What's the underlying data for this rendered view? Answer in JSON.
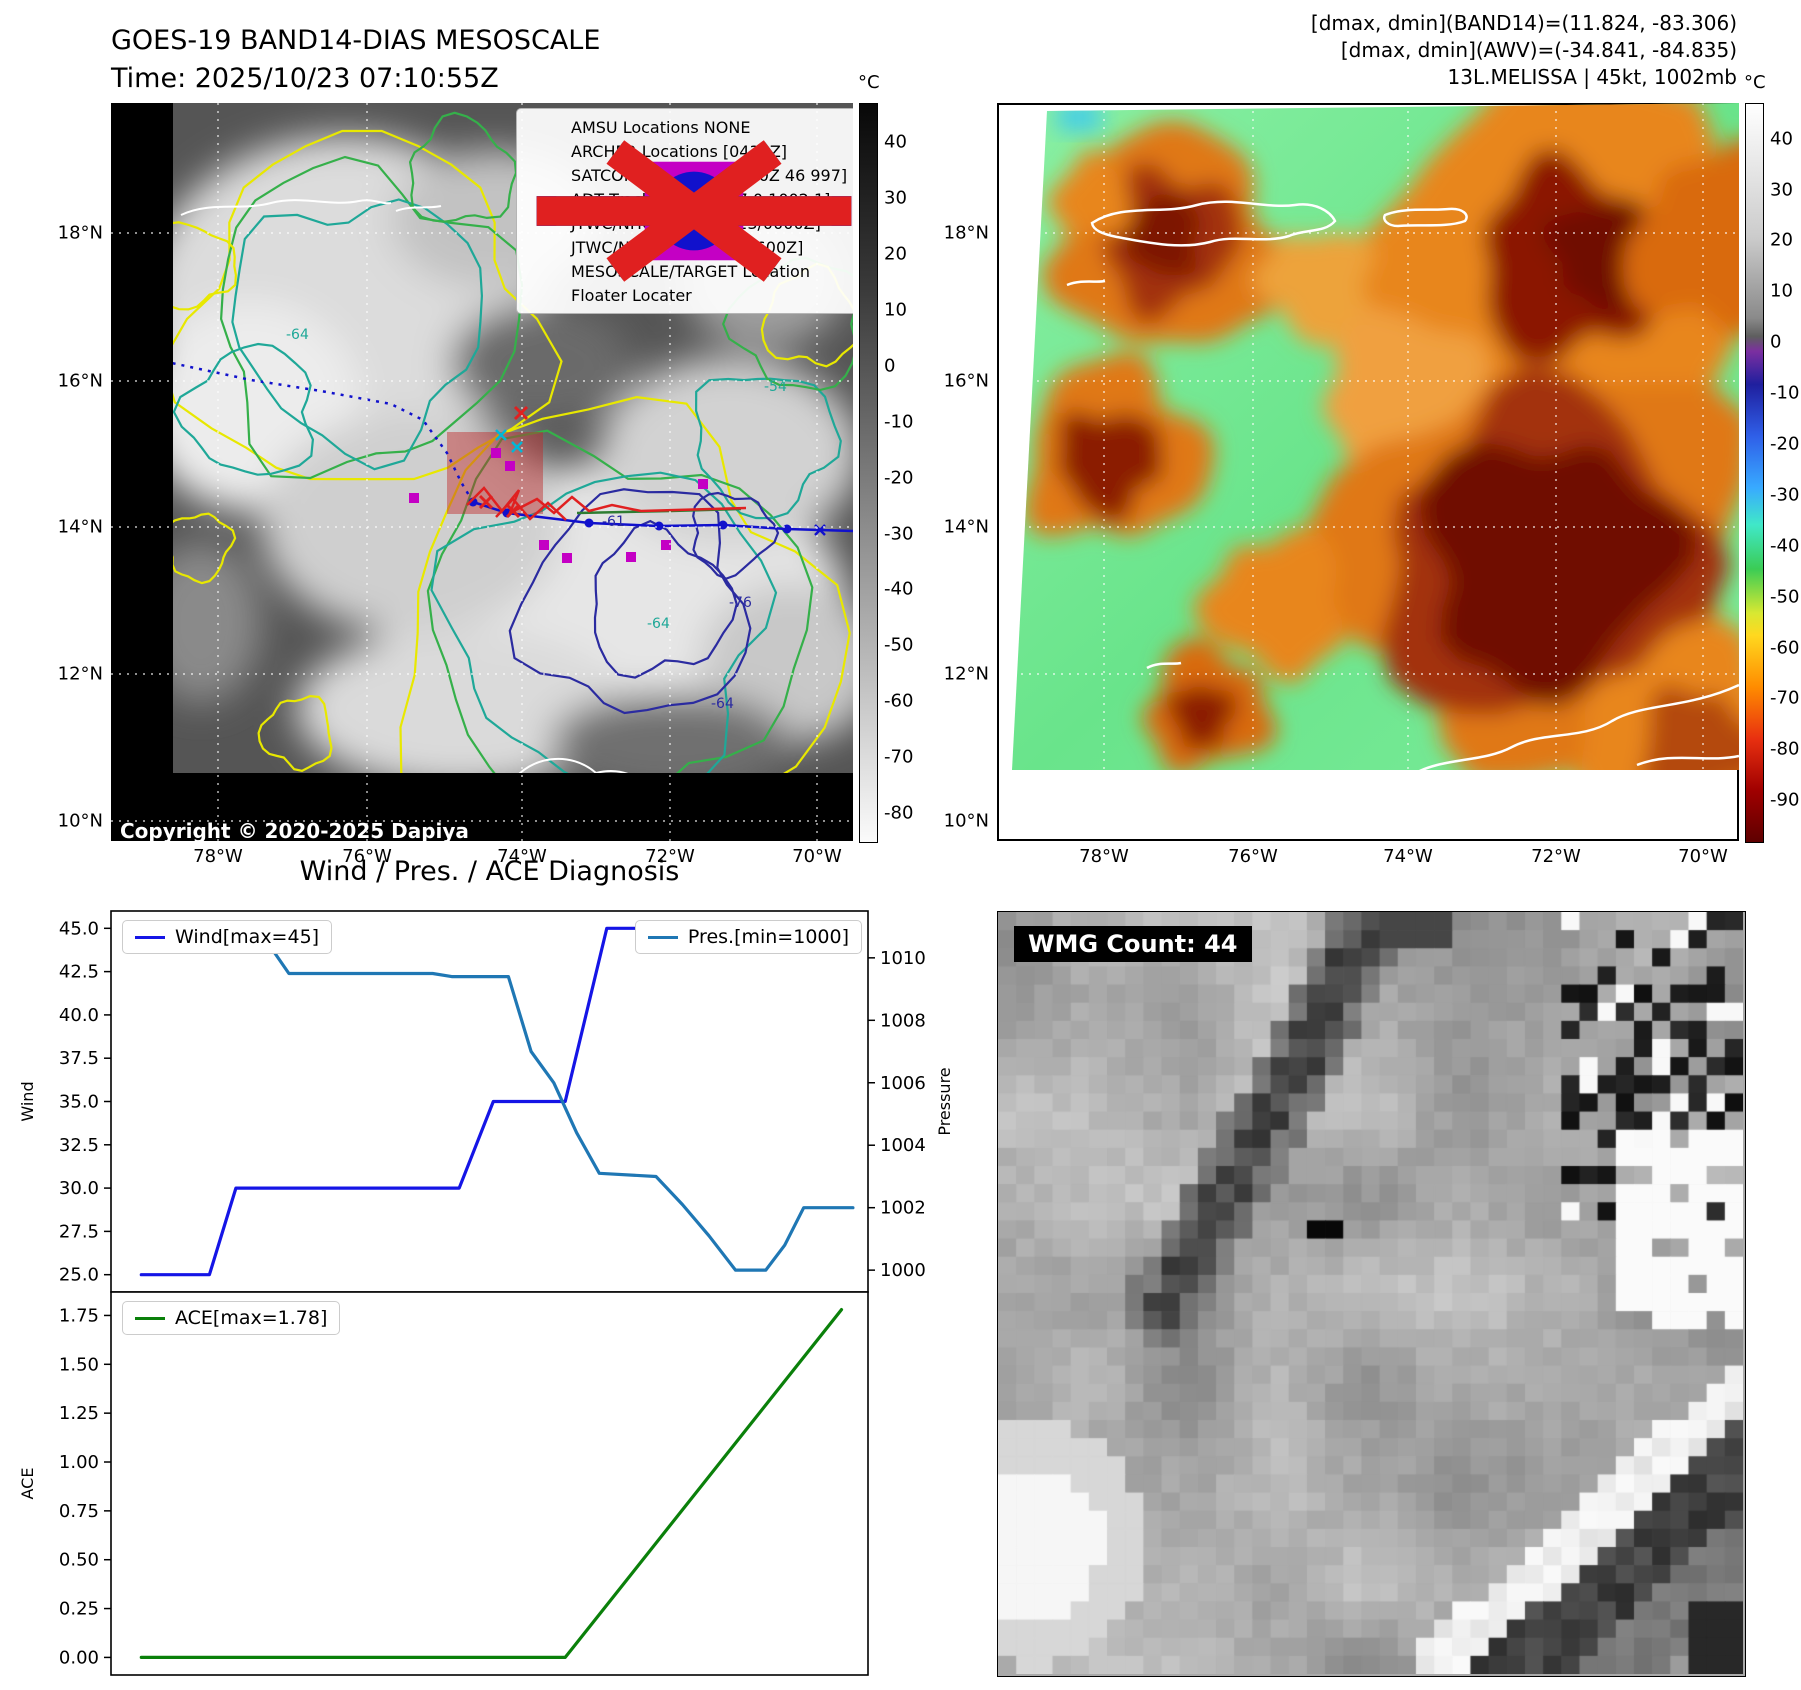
{
  "band14_panel": {
    "title": "GOES-19 BAND14-DIAS MESOSCALE",
    "time_line": "Time: 2025/10/23 07:10:55Z",
    "copyright": "Copyright © 2020-2025 Dapiya",
    "colorbar_unit": "°C",
    "colorbar_ticks": [
      40,
      30,
      20,
      10,
      0,
      -10,
      -20,
      -30,
      -40,
      -50,
      -60,
      -70,
      -80
    ],
    "colorbar_range": {
      "max": 47,
      "min": -85
    },
    "lat_ticks": [
      "18°N",
      "16°N",
      "14°N",
      "12°N",
      "10°N"
    ],
    "lon_ticks": [
      "78°W",
      "76°W",
      "74°W",
      "72°W",
      "70°W"
    ],
    "contour_labels": [
      "-64",
      "-54",
      "-61",
      "-76",
      "-64",
      "-64"
    ],
    "legend": [
      {
        "symbol": "magenta-square",
        "label": "AMSU Locations NONE"
      },
      {
        "symbol": "magenta-square",
        "label": "ARCHER Locations [0438Z]"
      },
      {
        "symbol": "cyan-x",
        "label": "SATCON Locations [0110Z 46 997]"
      },
      {
        "symbol": "green-line",
        "label": "ADT Tracks [0640Z 37.0 1002.1]"
      },
      {
        "symbol": "blue-dotted-line",
        "label": "JTWC/NHC Forecast [23/0000Z]"
      },
      {
        "symbol": "blue-line-dot",
        "label": "JTWC/NHC Tracks [23/0600Z]"
      },
      {
        "symbol": "red-x",
        "label": "MESOSCALE/TARGET Location"
      },
      {
        "symbol": "red-line",
        "label": "Floater Locater"
      }
    ]
  },
  "awv_panel": {
    "header_lines": [
      "[dmax, dmin](BAND14)=(11.824, -83.306)",
      "[dmax, dmin](AWV)=(-34.841, -84.835)",
      "13L.MELISSA | 45kt, 1002mb"
    ],
    "colorbar_unit": "°C",
    "colorbar_ticks": [
      40,
      30,
      20,
      10,
      0,
      -10,
      -20,
      -30,
      -40,
      -50,
      -60,
      -70,
      -80,
      -90
    ],
    "colorbar_range": {
      "max": 47,
      "min": -98
    },
    "lat_ticks": [
      "18°N",
      "16°N",
      "14°N",
      "12°N",
      "10°N"
    ],
    "lon_ticks": [
      "78°W",
      "76°W",
      "74°W",
      "72°W",
      "70°W"
    ]
  },
  "wmg_panel": {
    "label": "WMG Count: 44"
  },
  "diagnosis": {
    "title": "Wind / Pres. / ACE Diagnosis"
  },
  "chart_data": [
    {
      "type": "line",
      "title": "Wind / Pres. / ACE Diagnosis",
      "grid": false,
      "legend_position": "upper-left and upper-right",
      "left_axis": {
        "label": "Wind",
        "lim": [
          24,
          46
        ],
        "tick_values": [
          25,
          27.5,
          30,
          32.5,
          35,
          37.5,
          40,
          42.5,
          45
        ],
        "tick_labels": [
          "25.0",
          "27.5",
          "30.0",
          "32.5",
          "35.0",
          "37.5",
          "40.0",
          "42.5",
          "45.0"
        ]
      },
      "right_axis": {
        "label": "Pressure",
        "lim": [
          999.3,
          1011.5
        ],
        "tick_values": [
          1000,
          1002,
          1004,
          1006,
          1008,
          1010
        ],
        "tick_labels": [
          "1000",
          "1002",
          "1004",
          "1006",
          "1008",
          "1010"
        ]
      },
      "series": [
        {
          "name": "Wind[max=45]",
          "color": "#1515e6",
          "axis": "left",
          "x": [
            0.04,
            0.13,
            0.165,
            0.46,
            0.505,
            0.6,
            0.655,
            0.98
          ],
          "y": [
            25,
            25,
            30,
            30,
            35,
            35,
            45,
            45
          ]
        },
        {
          "name": "Pres.[min=1000]",
          "color": "#1f77b4",
          "axis": "right",
          "x": [
            0.04,
            0.145,
            0.165,
            0.215,
            0.235,
            0.425,
            0.45,
            0.525,
            0.555,
            0.585,
            0.615,
            0.645,
            0.72,
            0.755,
            0.79,
            0.825,
            0.865,
            0.89,
            0.915,
            0.98
          ],
          "y": [
            1010.9,
            1010.9,
            1010.2,
            1010.2,
            1009.5,
            1009.5,
            1009.4,
            1009.4,
            1007.0,
            1006.0,
            1004.4,
            1003.1,
            1003.0,
            1002.1,
            1001.1,
            1000.0,
            1000.0,
            1000.8,
            1002.0,
            1002.0
          ]
        }
      ]
    },
    {
      "type": "line",
      "grid": false,
      "legend_position": "upper-left",
      "left_axis": {
        "label": "ACE",
        "lim": [
          -0.09,
          1.87
        ],
        "tick_values": [
          0,
          0.25,
          0.5,
          0.75,
          1,
          1.25,
          1.5,
          1.75
        ],
        "tick_labels": [
          "0.00",
          "0.25",
          "0.50",
          "0.75",
          "1.00",
          "1.25",
          "1.50",
          "1.75"
        ]
      },
      "series": [
        {
          "name": "ACE[max=1.78]",
          "color": "#0a800a",
          "axis": "left",
          "x": [
            0.04,
            0.6,
            0.965
          ],
          "y": [
            0.0,
            0.0,
            1.78
          ]
        }
      ]
    }
  ]
}
